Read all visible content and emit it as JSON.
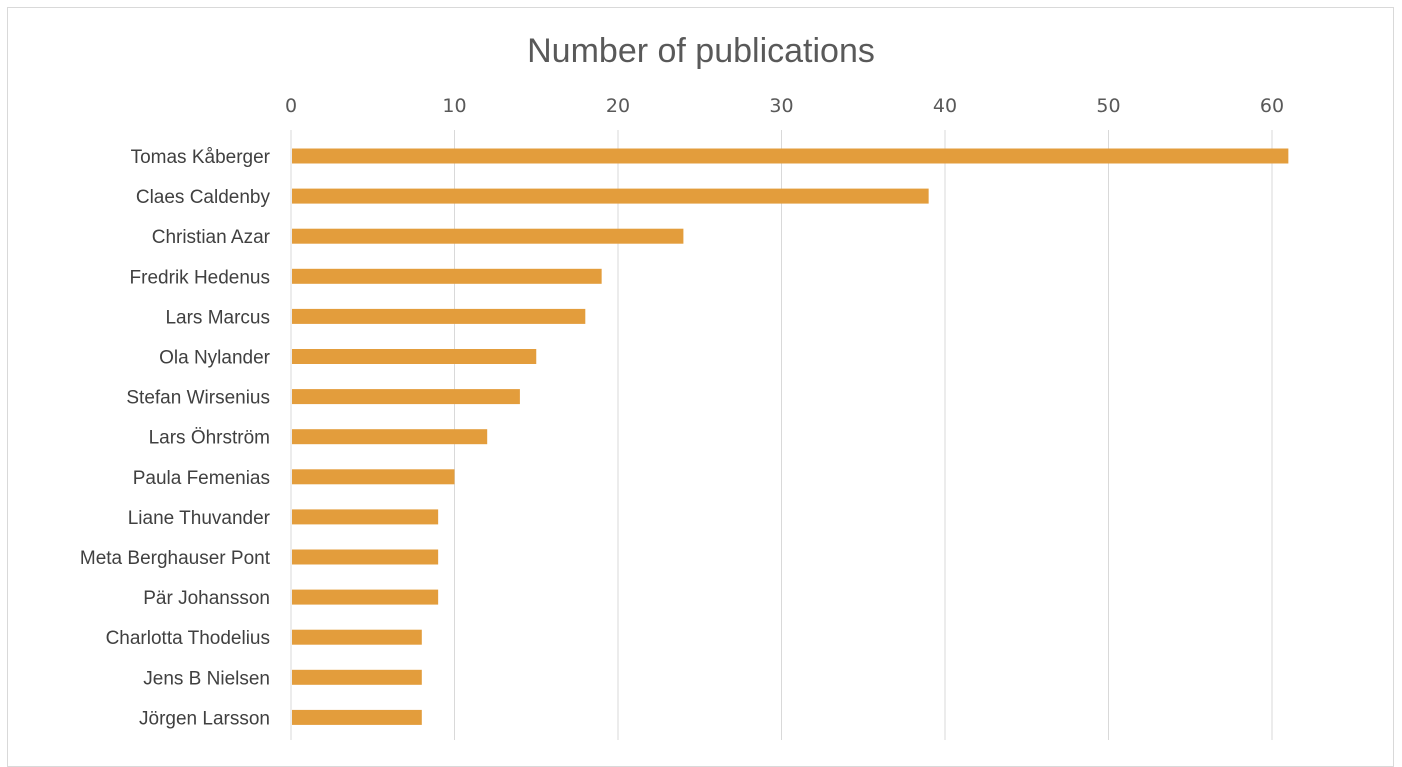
{
  "chart_data": {
    "type": "bar",
    "orientation": "horizontal",
    "title": "Number of publications",
    "xlabel": "",
    "ylabel": "",
    "xlim": [
      0,
      61
    ],
    "x_ticks": [
      0,
      10,
      20,
      30,
      40,
      50,
      60
    ],
    "x_axis_position": "top",
    "grid": true,
    "legend": "none",
    "bar_color": "#E39D3C",
    "categories": [
      "Tomas Kåberger",
      "Claes Caldenby",
      "Christian Azar",
      "Fredrik Hedenus ",
      "Lars Marcus ",
      "Ola Nylander",
      "Stefan Wirsenius",
      "Lars Öhrström",
      "Paula Femenias ",
      "Liane Thuvander ",
      "Meta Berghauser Pont ",
      "Pär Johansson",
      "Charlotta Thodelius",
      "Jens B Nielsen",
      "Jörgen Larsson "
    ],
    "values": [
      61,
      39,
      24,
      19,
      18,
      15,
      14,
      12,
      10,
      9,
      9,
      9,
      8,
      8,
      8
    ]
  }
}
